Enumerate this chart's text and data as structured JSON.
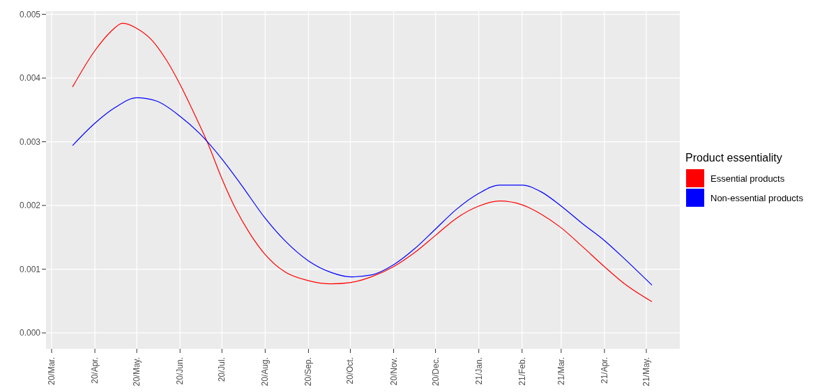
{
  "chart_data": {
    "type": "line",
    "legend_title": "Product essentiality",
    "legend": "right",
    "grid": true,
    "marker": "none",
    "line_style": "solid",
    "xlim": [
      "2020-02-26",
      "2021-05-25"
    ],
    "xticks": [
      {
        "value": "2020-03-01",
        "label": "20/Mar."
      },
      {
        "value": "2020-04-01",
        "label": "20/Apr."
      },
      {
        "value": "2020-05-01",
        "label": "20/May."
      },
      {
        "value": "2020-06-01",
        "label": "20/Jun."
      },
      {
        "value": "2020-07-01",
        "label": "20/Jul."
      },
      {
        "value": "2020-08-01",
        "label": "20/Aug."
      },
      {
        "value": "2020-09-01",
        "label": "20/Sep."
      },
      {
        "value": "2020-10-01",
        "label": "20/Oct."
      },
      {
        "value": "2020-11-01",
        "label": "20/Nov."
      },
      {
        "value": "2020-12-01",
        "label": "20/Dec."
      },
      {
        "value": "2021-01-01",
        "label": "21/Jan."
      },
      {
        "value": "2021-02-01",
        "label": "21/Feb."
      },
      {
        "value": "2021-03-01",
        "label": "21/Mar."
      },
      {
        "value": "2021-04-01",
        "label": "21/Apr."
      },
      {
        "value": "2021-05-01",
        "label": "21/May."
      }
    ],
    "ylim": [
      -0.00025,
      0.00505
    ],
    "yticks": [
      {
        "value": 0,
        "label": "0.000"
      },
      {
        "value": 0.001,
        "label": "0.001"
      },
      {
        "value": 0.002,
        "label": "0.002"
      },
      {
        "value": 0.003,
        "label": "0.003"
      },
      {
        "value": 0.004,
        "label": "0.004"
      },
      {
        "value": 0.005,
        "label": "0.005"
      }
    ],
    "series": [
      {
        "name": "Essential products",
        "color": "#ff0000",
        "x": [
          "2020-03-16",
          "2020-04-01",
          "2020-04-12",
          "2020-04-21",
          "2020-05-01",
          "2020-05-12",
          "2020-05-22",
          "2020-06-01",
          "2020-06-11",
          "2020-06-21",
          "2020-07-01",
          "2020-07-11",
          "2020-07-21",
          "2020-08-01",
          "2020-08-15",
          "2020-09-01",
          "2020-09-17",
          "2020-10-01",
          "2020-10-16",
          "2020-11-01",
          "2020-11-16",
          "2020-12-01",
          "2020-12-16",
          "2021-01-01",
          "2021-01-16",
          "2021-02-01",
          "2021-02-15",
          "2021-03-01",
          "2021-03-16",
          "2021-04-01",
          "2021-04-16",
          "2021-05-05"
        ],
        "values": [
          0.00386,
          0.00443,
          0.00472,
          0.00486,
          0.00478,
          0.00459,
          0.00429,
          0.0039,
          0.00345,
          0.00297,
          0.00242,
          0.00194,
          0.00156,
          0.00123,
          0.00096,
          0.00082,
          0.00077,
          0.00079,
          0.00088,
          0.00104,
          0.00126,
          0.00153,
          0.0018,
          0.00199,
          0.00207,
          0.00201,
          0.00186,
          0.00165,
          0.00136,
          0.00104,
          0.00076,
          0.00049
        ]
      },
      {
        "name": "Non-essential products",
        "color": "#0000ff",
        "x": [
          "2020-03-16",
          "2020-04-01",
          "2020-04-15",
          "2020-05-01",
          "2020-05-15",
          "2020-06-01",
          "2020-06-15",
          "2020-07-01",
          "2020-07-15",
          "2020-08-01",
          "2020-08-15",
          "2020-09-01",
          "2020-09-17",
          "2020-10-01",
          "2020-10-16",
          "2020-11-01",
          "2020-11-16",
          "2020-12-01",
          "2020-12-16",
          "2021-01-01",
          "2021-01-16",
          "2021-02-01",
          "2021-02-15",
          "2021-03-01",
          "2021-03-16",
          "2021-04-01",
          "2021-04-16",
          "2021-05-05"
        ],
        "values": [
          0.00294,
          0.00329,
          0.00353,
          0.00369,
          0.00364,
          0.0034,
          0.00313,
          0.00273,
          0.00232,
          0.0018,
          0.00145,
          0.00113,
          0.00095,
          0.00088,
          0.00091,
          0.00107,
          0.00132,
          0.00163,
          0.00194,
          0.00219,
          0.00232,
          0.00232,
          0.00221,
          0.00199,
          0.00172,
          0.00145,
          0.00115,
          0.00075
        ]
      }
    ]
  }
}
